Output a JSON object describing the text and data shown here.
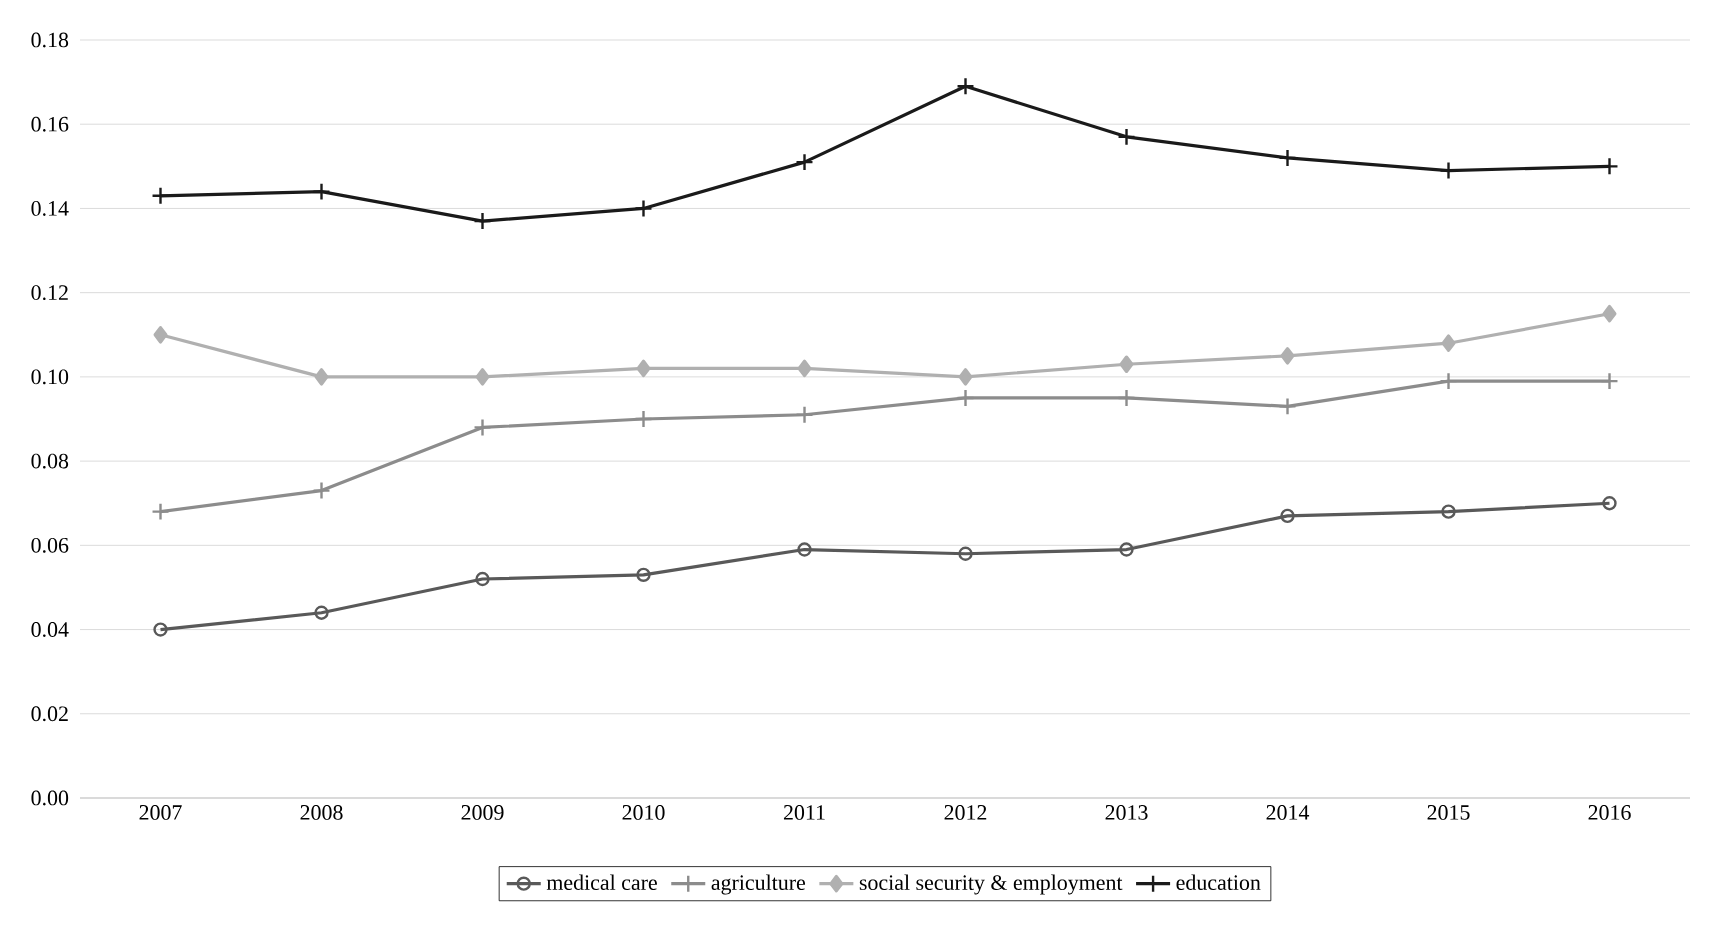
{
  "chart_data": {
    "type": "line",
    "categories": [
      "2007",
      "2008",
      "2009",
      "2010",
      "2011",
      "2012",
      "2013",
      "2014",
      "2015",
      "2016"
    ],
    "series": [
      {
        "name": "medical care",
        "color": "#595959",
        "marker": "circle",
        "values": [
          0.04,
          0.044,
          0.052,
          0.053,
          0.059,
          0.058,
          0.059,
          0.067,
          0.068,
          0.07
        ]
      },
      {
        "name": "agriculture",
        "color": "#8c8c8c",
        "marker": "cross",
        "values": [
          0.068,
          0.073,
          0.088,
          0.09,
          0.091,
          0.095,
          0.095,
          0.093,
          0.099,
          0.099
        ]
      },
      {
        "name": "social security & employment",
        "color": "#b0b0b0",
        "marker": "diamond",
        "values": [
          0.11,
          0.1,
          0.1,
          0.102,
          0.102,
          0.1,
          0.103,
          0.105,
          0.108,
          0.115
        ]
      },
      {
        "name": "education",
        "color": "#1a1a1a",
        "marker": "cross",
        "values": [
          0.143,
          0.144,
          0.137,
          0.14,
          0.151,
          0.169,
          0.157,
          0.152,
          0.149,
          0.15
        ]
      }
    ],
    "ylim": [
      0,
      0.18
    ],
    "yticks": [
      {
        "value": 0,
        "label": "0.00"
      },
      {
        "value": 0.02,
        "label": "0.02"
      },
      {
        "value": 0.04,
        "label": "0.04"
      },
      {
        "value": 0.06,
        "label": "0.06"
      },
      {
        "value": 0.08,
        "label": "0.08"
      },
      {
        "value": 0.1,
        "label": "0.10"
      },
      {
        "value": 0.12,
        "label": "0.12"
      },
      {
        "value": 0.14,
        "label": "0.14"
      },
      {
        "value": 0.16,
        "label": "0.16"
      },
      {
        "value": 0.18,
        "label": "0.18"
      }
    ],
    "grid": "y",
    "legend": "bottom",
    "line_style": "solid"
  }
}
